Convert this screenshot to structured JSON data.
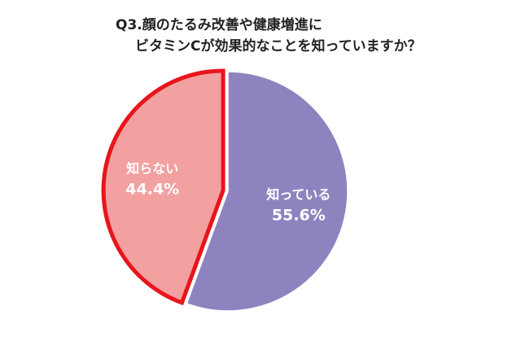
{
  "chart_data": {
    "type": "pie",
    "title_lines": [
      "Q3.顔のたるみ改善や健康増進に",
      "ビタミンCが効果的なことを知っていますか？"
    ],
    "slices": [
      {
        "label": "知っている",
        "value": 55.6,
        "value_label": "55.6%",
        "color": "#8f83bf",
        "stroke": "#ffffff"
      },
      {
        "label": "知らない",
        "value": 44.4,
        "value_label": "44.4%",
        "color": "#f2a0a0",
        "stroke": "#e8151b",
        "exploded": true
      }
    ]
  }
}
